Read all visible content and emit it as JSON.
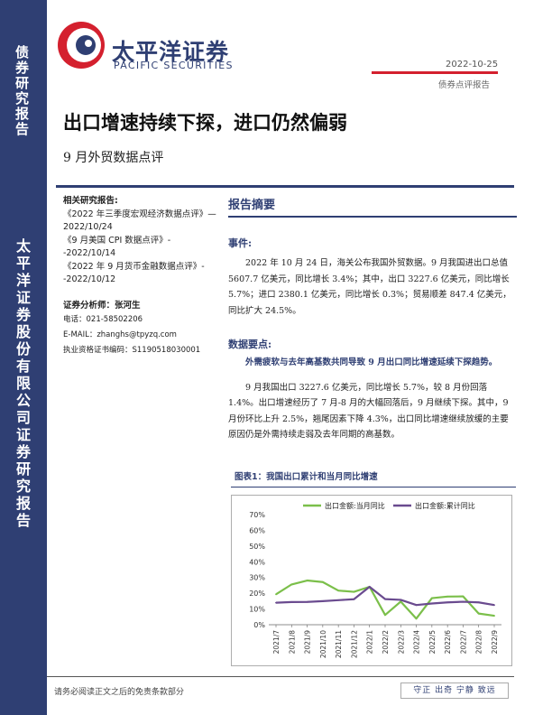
{
  "sidebar": {
    "top_text": "债券研究报告",
    "bottom_text": "太平洋证券股份有限公司证券研究报告"
  },
  "header": {
    "logo_cn": "太平洋证券",
    "logo_en": "PACIFIC SECURITIES",
    "date": "2022-10-25",
    "doc_type": "债券点评报告"
  },
  "title": "出口增速持续下探，进口仍然偏弱",
  "subtitle": "9 月外贸数据点评",
  "related": {
    "heading": "相关研究报告:",
    "items": [
      "《2022 年三季度宏观经济数据点评》—2022/10/24",
      "《9 月美国 CPI 数据点评》--2022/10/14",
      "《2022 年 9 月货币金融数据点评》--2022/10/12"
    ]
  },
  "analyst": {
    "label": "证券分析师：张河生",
    "phone": "电话：021-58502206",
    "email": "E-MAIL：zhanghs@tpyzq.com",
    "cert": "执业资格证书编码：S1190518030001"
  },
  "summary": {
    "heading": "报告摘要",
    "event_label": "事件:",
    "event_text": "2022 年 10 月 24 日，海关公布我国外贸数据。9 月我国进出口总值 5607.7 亿美元，同比增长 3.4%；其中，出口 3227.6 亿美元，同比增长 5.7%；进口 2380.1 亿美元，同比增长 0.3%；贸易顺差 847.4 亿美元，同比扩大 24.5%。",
    "points_label": "数据要点:",
    "point_bold": "外需疲软与去年高基数共同导致 9 月出口同比增速延续下探趋势。",
    "point_text": "9 月我国出口 3227.6 亿美元，同比增长 5.7%，较 8 月份回落 1.4%。出口增速经历了 7 月-8 月的大幅回落后，9 月继续下探。其中，9 月份环比上升 2.5%，翘尾因素下降 4.3%，出口同比增速继续放缓的主要原因仍是外需持续走弱及去年同期的高基数。"
  },
  "figure": {
    "title": "图表1：我国出口累计和当月同比增速"
  },
  "chart_data": {
    "type": "line",
    "categories": [
      "2021/7",
      "2021/8",
      "2021/9",
      "2021/10",
      "2021/11",
      "2021/12",
      "2022/1",
      "2022/2",
      "2022/3",
      "2022/4",
      "2022/5",
      "2022/6",
      "2022/7",
      "2022/8",
      "2022/9"
    ],
    "series": [
      {
        "name": "出口金额:当月同比",
        "color": "#7bbf4a",
        "values": [
          19.3,
          25.6,
          28.1,
          27.1,
          21.7,
          20.9,
          24.1,
          6.2,
          14.7,
          3.9,
          16.9,
          17.9,
          18.0,
          7.1,
          5.7
        ]
      },
      {
        "name": "出口金额:累计同比",
        "color": "#6a4b8f",
        "values": [
          14.0,
          14.4,
          14.5,
          15.0,
          15.6,
          16.2,
          24.1,
          16.3,
          15.8,
          12.5,
          13.5,
          14.2,
          14.6,
          14.2,
          12.5
        ]
      }
    ],
    "y_ticks": [
      "0%",
      "10%",
      "20%",
      "30%",
      "40%",
      "50%",
      "60%",
      "70%"
    ],
    "ylim": [
      0,
      70
    ],
    "legend": "top"
  },
  "footer": {
    "disclaimer": "请务必阅读正文之后的免责条款部分",
    "motto": "守正 出奇 宁静 致远"
  }
}
